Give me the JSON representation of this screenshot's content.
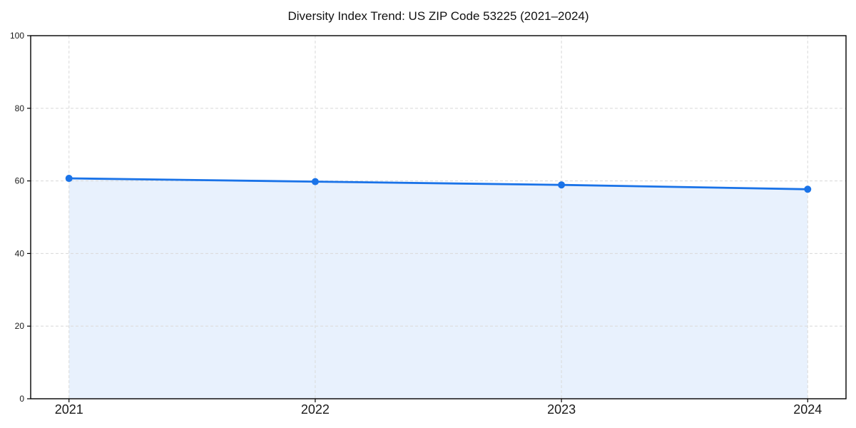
{
  "figure": {
    "background": "#ffffff"
  },
  "chart_data": {
    "type": "area",
    "title": "Diversity Index Trend: US ZIP Code 53225 (2021–2024)",
    "categories": [
      "2021",
      "2022",
      "2023",
      "2024"
    ],
    "values": [
      60.7,
      59.8,
      58.9,
      57.7
    ],
    "ylim": [
      0,
      100
    ],
    "yticks": [
      0,
      20,
      40,
      60,
      80,
      100
    ],
    "xlabel": "",
    "ylabel": "",
    "grid": true,
    "grid_style": "dashed",
    "legend_position": "none",
    "line_color": "#1a73e8",
    "marker": "circle",
    "marker_size": 5,
    "fill_color": "#1a73e8",
    "fill_opacity": 0.1,
    "grid_color": "#dcdcdc",
    "axis_color": "#000000",
    "tick_label_color": "#1a1a1a"
  }
}
